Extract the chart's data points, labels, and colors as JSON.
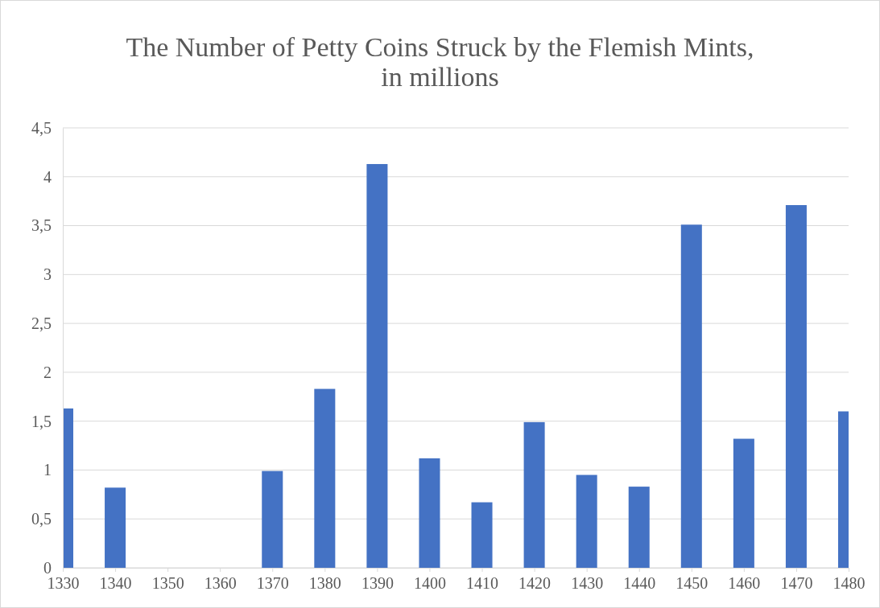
{
  "chart_data": {
    "type": "bar",
    "title": "The Number of Petty Coins Struck by the Flemish Mints, in millions",
    "x": [
      1330,
      1340,
      1350,
      1360,
      1370,
      1380,
      1390,
      1400,
      1410,
      1420,
      1430,
      1440,
      1450,
      1460,
      1470,
      1480
    ],
    "values": [
      1.63,
      0.82,
      0,
      0,
      0.99,
      1.83,
      4.13,
      1.12,
      0.67,
      1.49,
      0.95,
      0.83,
      3.51,
      1.32,
      3.71,
      1.6
    ],
    "color": "#4472c4",
    "xlim": [
      1330,
      1480
    ],
    "xticks": [
      1330,
      1340,
      1350,
      1360,
      1370,
      1380,
      1390,
      1400,
      1410,
      1420,
      1430,
      1440,
      1450,
      1460,
      1470,
      1480
    ],
    "ylim": [
      0,
      4.5
    ],
    "yticks": [
      0,
      {
        "value": 0.5,
        "label": "0,5"
      },
      1,
      {
        "value": 1.5,
        "label": "1,5"
      },
      2,
      {
        "value": 2.5,
        "label": "2,5"
      },
      3,
      {
        "value": 3.5,
        "label": "3,5"
      },
      4,
      {
        "value": 4.5,
        "label": "4,5"
      }
    ],
    "grid": "y"
  }
}
